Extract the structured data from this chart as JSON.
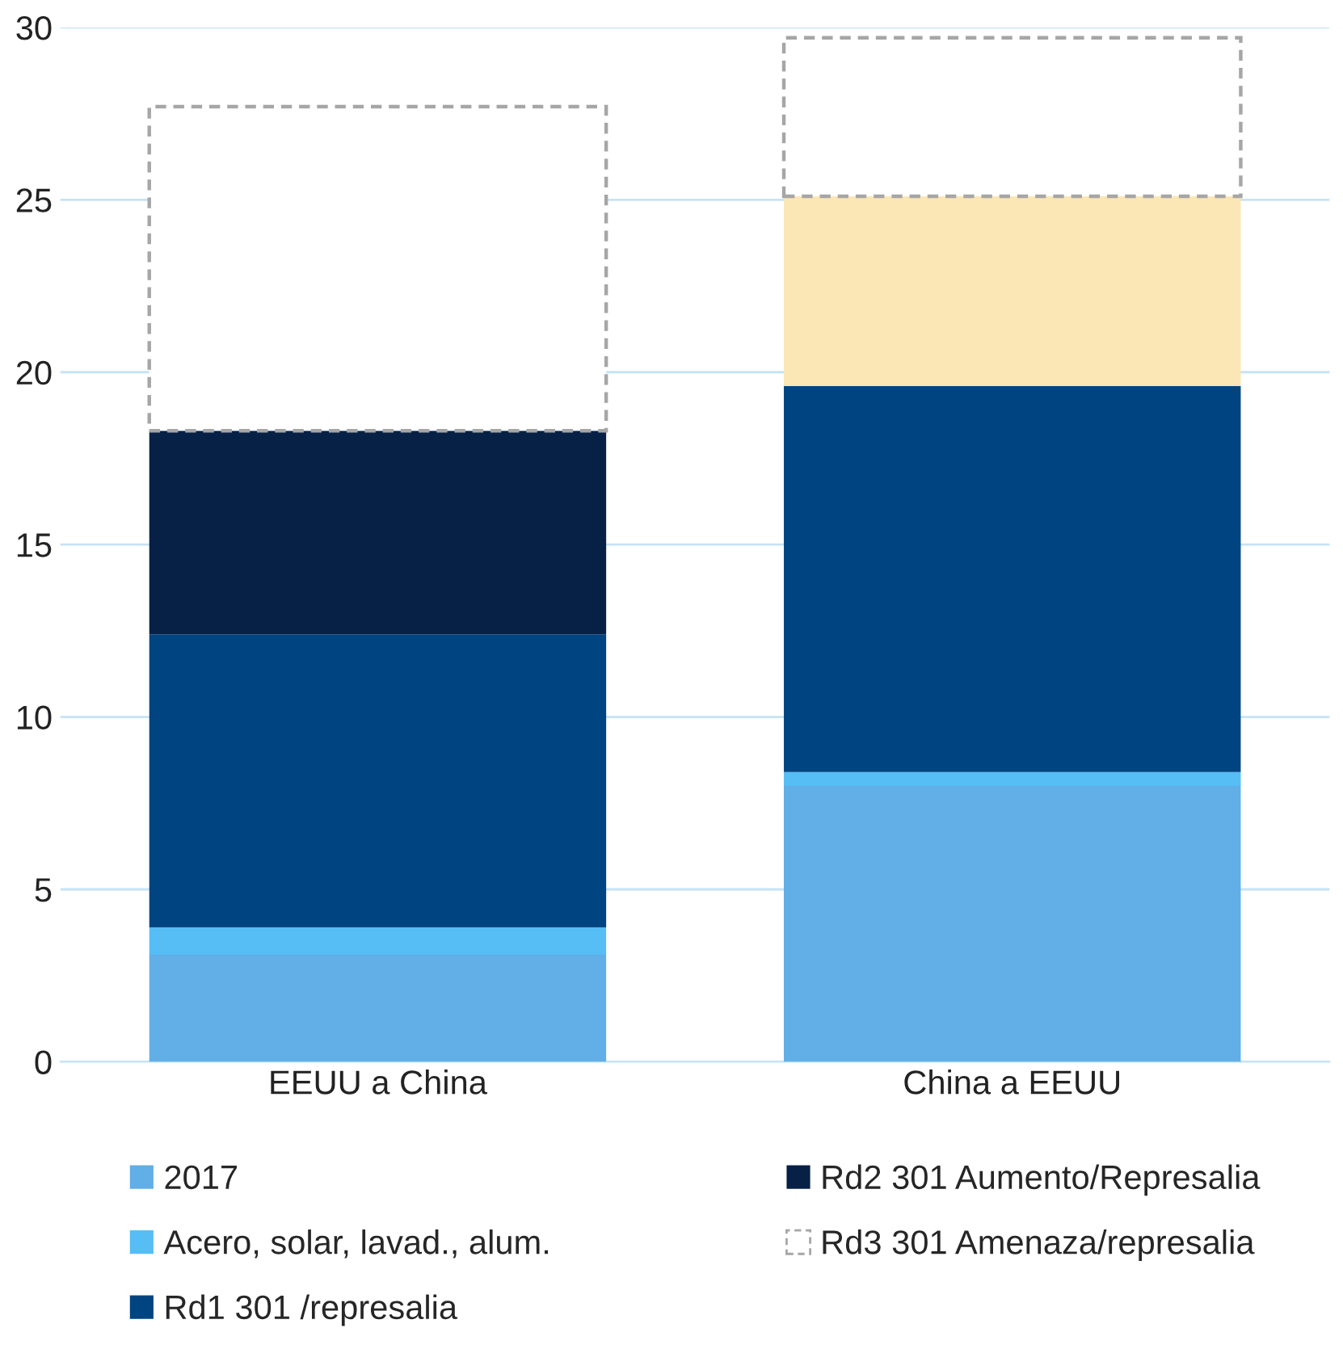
{
  "chart_data": {
    "type": "bar",
    "stacked": true,
    "categories": [
      "EEUU a China",
      "China a EEUU"
    ],
    "series": [
      {
        "name": "2017",
        "color": "#62aee6",
        "values": [
          3.1,
          8.0
        ]
      },
      {
        "name": "Acero, solar, lavad., alum.",
        "color": "#56bdf5",
        "values": [
          0.8,
          0.4
        ]
      },
      {
        "name": "Rd1 301 /represalia",
        "color": "#004481",
        "values": [
          8.5,
          11.2
        ]
      },
      {
        "name": "Rd2 301 Aumento/Represalia",
        "color": "#072146",
        "colors": [
          "#072146",
          "#fbe6b5"
        ],
        "values": [
          5.9,
          5.5
        ]
      },
      {
        "name": "Rd3 301 Amenaza/represalia",
        "color": "#ffffff",
        "line_style": "dashed",
        "values": [
          9.4,
          4.6
        ]
      }
    ],
    "ylim": [
      0,
      30
    ],
    "yticks": [
      0,
      5,
      10,
      15,
      20,
      25,
      30
    ],
    "grid": "y",
    "legend": "bottom"
  }
}
